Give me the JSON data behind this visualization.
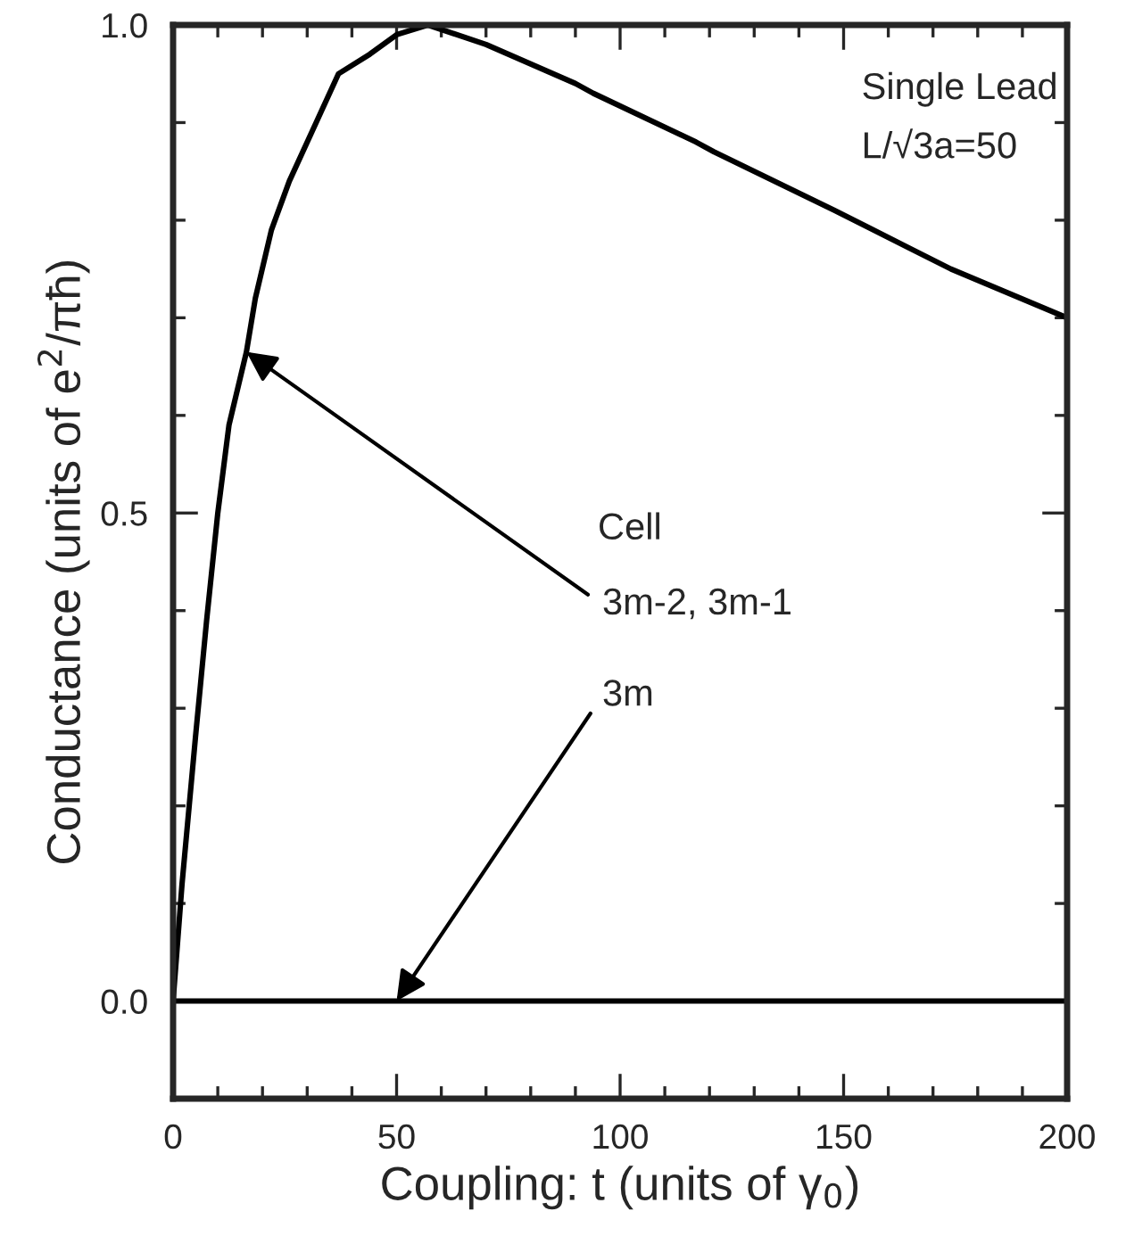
{
  "chart_data": {
    "type": "line",
    "xlabel": "Coupling: t (units of γ$_{0}$)",
    "ylabel": "Conductance (units of e$^{2}$/πħ)",
    "series": [
      {
        "color": "#000000",
        "x": [
          0,
          2,
          5,
          7.5,
          10,
          12.5,
          16.4,
          18.4,
          22,
          26,
          32,
          37,
          44,
          50,
          57,
          70,
          90,
          94,
          117,
          121,
          148,
          174,
          200
        ],
        "values": [
          0,
          0.12,
          0.27,
          0.39,
          0.5,
          0.59,
          0.665,
          0.72,
          0.79,
          0.84,
          0.9,
          0.95,
          0.97,
          0.99,
          1.0,
          0.98,
          0.94,
          0.93,
          0.88,
          0.87,
          0.81,
          0.75,
          0.7
        ]
      },
      {
        "color": "#000000",
        "x": [
          0,
          200
        ],
        "values": [
          0,
          0
        ]
      }
    ],
    "annotations": [
      "Single Lead",
      "L/√3a=50",
      "Cell",
      {
        "text": "3m-2, 3m-1",
        "x": 16.4,
        "y": 0.665
      },
      {
        "text": "3m",
        "x": 50,
        "y": 0
      }
    ],
    "xlim": [
      0,
      200
    ],
    "xticks": [
      0,
      {
        "value": 10,
        "label": null
      },
      {
        "value": 20,
        "label": null
      },
      {
        "value": 30,
        "label": null
      },
      {
        "value": 40,
        "label": null
      },
      50,
      {
        "value": 60,
        "label": null
      },
      {
        "value": 70,
        "label": null
      },
      {
        "value": 80,
        "label": null
      },
      {
        "value": 90,
        "label": null
      },
      100,
      {
        "value": 110,
        "label": null
      },
      {
        "value": 120,
        "label": null
      },
      {
        "value": 130,
        "label": null
      },
      {
        "value": 140,
        "label": null
      },
      150,
      {
        "value": 160,
        "label": null
      },
      {
        "value": 170,
        "label": null
      },
      {
        "value": 180,
        "label": null
      },
      {
        "value": 190,
        "label": null
      },
      200
    ],
    "ylim": [
      -0.1,
      1.0
    ],
    "yticks": [
      {
        "value": 0,
        "label": "0.0"
      },
      {
        "value": 0.1,
        "label": null
      },
      {
        "value": 0.2,
        "label": null
      },
      {
        "value": 0.3,
        "label": null
      },
      {
        "value": 0.4,
        "label": null
      },
      0.5,
      {
        "value": 0.6,
        "label": null
      },
      {
        "value": 0.7,
        "label": null
      },
      {
        "value": 0.8,
        "label": null
      },
      {
        "value": 0.9,
        "label": null
      },
      {
        "value": 1.0,
        "label": "1.0"
      }
    ],
    "grid": false,
    "marker": "none",
    "line_style": "solid"
  }
}
